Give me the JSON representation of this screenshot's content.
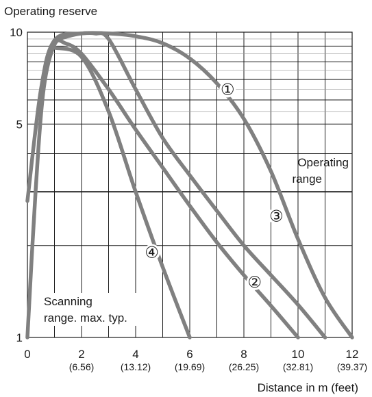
{
  "chart_data": {
    "type": "line",
    "ylabel": "Operating reserve",
    "xlabel": "Distance in m (feet)",
    "xlim": [
      0,
      12
    ],
    "ylim": [
      1,
      10
    ],
    "y_scale": "log",
    "grid": true,
    "x_ticks": [
      {
        "value": 0,
        "label": "0",
        "sub": ""
      },
      {
        "value": 2,
        "label": "2",
        "sub": "(6.56)"
      },
      {
        "value": 4,
        "label": "4",
        "sub": "(13.12)"
      },
      {
        "value": 6,
        "label": "6",
        "sub": "(19.69)"
      },
      {
        "value": 8,
        "label": "8",
        "sub": "(26.25)"
      },
      {
        "value": 10,
        "label": "10",
        "sub": "(32.81)"
      },
      {
        "value": 12,
        "label": "12",
        "sub": "(39.37)"
      }
    ],
    "y_ticks": [
      {
        "value": 1,
        "label": "1"
      },
      {
        "value": 5,
        "label": "5"
      },
      {
        "value": 10,
        "label": "10"
      }
    ],
    "reference_line": {
      "y": 3,
      "label_line1": "Operating",
      "label_line2": "range"
    },
    "annotation": {
      "line1": "Scanning",
      "line2": "range. max. typ."
    },
    "series": [
      {
        "name": "①",
        "color": "#808080",
        "points": [
          [
            0,
            2.8
          ],
          [
            0.5,
            6.5
          ],
          [
            1,
            9.4
          ],
          [
            2,
            9.9
          ],
          [
            3,
            9.9
          ],
          [
            4,
            9.7
          ],
          [
            5,
            9.2
          ],
          [
            6,
            8.2
          ],
          [
            7,
            6.8
          ],
          [
            8,
            5.2
          ],
          [
            9,
            3.5
          ],
          [
            10,
            2.1
          ],
          [
            11,
            1.35
          ],
          [
            12,
            1
          ]
        ]
      },
      {
        "name": "②",
        "color": "#808080",
        "points": [
          [
            0,
            1
          ],
          [
            0.3,
            3
          ],
          [
            0.6,
            6.5
          ],
          [
            1,
            9.1
          ],
          [
            1.4,
            9.2
          ],
          [
            2,
            8.5
          ],
          [
            3,
            6.5
          ],
          [
            4,
            4.8
          ],
          [
            5,
            3.6
          ],
          [
            6,
            2.7
          ],
          [
            7,
            2.05
          ],
          [
            8,
            1.6
          ],
          [
            9,
            1.27
          ],
          [
            10,
            1
          ]
        ]
      },
      {
        "name": "③",
        "color": "#808080",
        "points": [
          [
            1,
            9.4
          ],
          [
            1.5,
            9.7
          ],
          [
            2,
            9.9
          ],
          [
            2.5,
            9.9
          ],
          [
            3,
            9.5
          ],
          [
            4,
            6.5
          ],
          [
            5,
            4.5
          ],
          [
            6,
            3.4
          ],
          [
            7,
            2.6
          ],
          [
            8,
            2.0
          ],
          [
            9,
            1.6
          ],
          [
            10,
            1.28
          ],
          [
            11,
            1
          ]
        ]
      },
      {
        "name": "④",
        "color": "#808080",
        "points": [
          [
            1,
            8.9
          ],
          [
            2,
            8.3
          ],
          [
            3,
            5.5
          ],
          [
            4,
            3.0
          ],
          [
            5,
            1.7
          ],
          [
            6,
            1
          ]
        ]
      }
    ],
    "series_labels": [
      {
        "name": "①",
        "x": 7.4,
        "y": 6.5
      },
      {
        "name": "②",
        "x": 8.4,
        "y": 1.52
      },
      {
        "name": "③",
        "x": 9.2,
        "y": 2.5
      },
      {
        "name": "④",
        "x": 4.6,
        "y": 1.9
      }
    ]
  }
}
